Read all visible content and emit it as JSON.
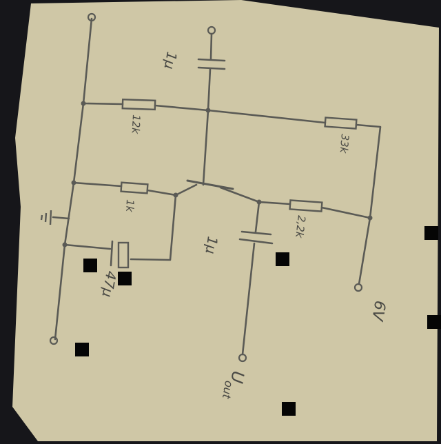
{
  "colors": {
    "background": "#16161a",
    "paper": "#cfc7a6",
    "ink": "#5a5a55",
    "occlusion": "#050505"
  },
  "components": {
    "cap_top": "1µ",
    "r_top": "12k",
    "r_right": "33k",
    "r_mid": "1k",
    "r_collector": "2,2k",
    "cap_out": "1µ",
    "cap_emitter": "47µ"
  },
  "labels": {
    "supply": "6V",
    "output": "U",
    "output_sub": "out"
  }
}
